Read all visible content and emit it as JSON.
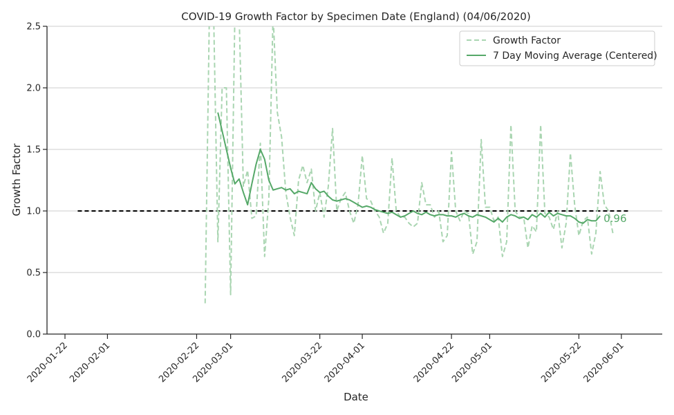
{
  "chart_data": {
    "type": "line",
    "title": "COVID-19 Growth Factor by Specimen Date (England) (04/06/2020)",
    "xlabel": "Date",
    "ylabel": "Growth Factor",
    "xlim": [
      "2020-01-22",
      "2020-06-02"
    ],
    "ylim": [
      0,
      2.5
    ],
    "x_ticks": [
      "2020-01-22",
      "2020-02-01",
      "2020-02-22",
      "2020-03-01",
      "2020-03-22",
      "2020-04-01",
      "2020-04-22",
      "2020-05-01",
      "2020-05-22",
      "2020-06-01"
    ],
    "y_ticks": [
      "0.0",
      "0.5",
      "1.0",
      "1.5",
      "2.0",
      "2.5"
    ],
    "grid": "horizontal",
    "legend_position": "top-right",
    "reference_line": {
      "y": 1.0,
      "x_from": "2020-01-25",
      "x_to": "2020-06-03",
      "style": "dashed",
      "color": "#000000"
    },
    "last_value_label": "0.96",
    "series": [
      {
        "name": "Growth Factor",
        "style": "dashed",
        "color": "#a9d5b1",
        "points": [
          [
            "2020-02-24",
            0.25
          ],
          [
            "2020-02-25",
            2.6
          ],
          [
            "2020-02-26",
            2.6
          ],
          [
            "2020-02-27",
            0.75
          ],
          [
            "2020-02-28",
            2.0
          ],
          [
            "2020-02-29",
            2.0
          ],
          [
            "2020-03-01",
            0.32
          ],
          [
            "2020-03-02",
            2.6
          ],
          [
            "2020-03-03",
            2.6
          ],
          [
            "2020-03-04",
            1.2
          ],
          [
            "2020-03-05",
            1.33
          ],
          [
            "2020-03-06",
            0.94
          ],
          [
            "2020-03-07",
            0.96
          ],
          [
            "2020-03-08",
            1.55
          ],
          [
            "2020-03-09",
            0.63
          ],
          [
            "2020-03-10",
            1.1
          ],
          [
            "2020-03-11",
            2.6
          ],
          [
            "2020-03-12",
            1.8
          ],
          [
            "2020-03-13",
            1.6
          ],
          [
            "2020-03-14",
            1.15
          ],
          [
            "2020-03-15",
            0.95
          ],
          [
            "2020-03-16",
            0.8
          ],
          [
            "2020-03-17",
            1.25
          ],
          [
            "2020-03-18",
            1.37
          ],
          [
            "2020-03-19",
            1.23
          ],
          [
            "2020-03-20",
            1.34
          ],
          [
            "2020-03-21",
            1.0
          ],
          [
            "2020-03-22",
            1.15
          ],
          [
            "2020-03-23",
            0.95
          ],
          [
            "2020-03-24",
            1.2
          ],
          [
            "2020-03-25",
            1.67
          ],
          [
            "2020-03-26",
            1.0
          ],
          [
            "2020-03-27",
            1.1
          ],
          [
            "2020-03-28",
            1.15
          ],
          [
            "2020-03-29",
            1.0
          ],
          [
            "2020-03-30",
            0.9
          ],
          [
            "2020-03-31",
            1.05
          ],
          [
            "2020-04-01",
            1.45
          ],
          [
            "2020-04-02",
            1.1
          ],
          [
            "2020-04-03",
            1.08
          ],
          [
            "2020-04-04",
            1.0
          ],
          [
            "2020-04-05",
            0.95
          ],
          [
            "2020-04-06",
            0.82
          ],
          [
            "2020-04-07",
            0.9
          ],
          [
            "2020-04-08",
            1.43
          ],
          [
            "2020-04-09",
            1.0
          ],
          [
            "2020-04-10",
            0.95
          ],
          [
            "2020-04-11",
            0.95
          ],
          [
            "2020-04-12",
            0.9
          ],
          [
            "2020-04-13",
            0.87
          ],
          [
            "2020-04-14",
            0.9
          ],
          [
            "2020-04-15",
            1.23
          ],
          [
            "2020-04-16",
            1.05
          ],
          [
            "2020-04-17",
            1.05
          ],
          [
            "2020-04-18",
            0.95
          ],
          [
            "2020-04-19",
            1.0
          ],
          [
            "2020-04-20",
            0.75
          ],
          [
            "2020-04-21",
            0.8
          ],
          [
            "2020-04-22",
            1.48
          ],
          [
            "2020-04-23",
            1.0
          ],
          [
            "2020-04-24",
            0.92
          ],
          [
            "2020-04-25",
            1.0
          ],
          [
            "2020-04-26",
            0.98
          ],
          [
            "2020-04-27",
            0.65
          ],
          [
            "2020-04-28",
            0.75
          ],
          [
            "2020-04-29",
            1.58
          ],
          [
            "2020-04-30",
            1.03
          ],
          [
            "2020-05-01",
            1.03
          ],
          [
            "2020-05-02",
            0.92
          ],
          [
            "2020-05-03",
            0.95
          ],
          [
            "2020-05-04",
            0.63
          ],
          [
            "2020-05-05",
            0.75
          ],
          [
            "2020-05-06",
            1.7
          ],
          [
            "2020-05-07",
            1.0
          ],
          [
            "2020-05-08",
            0.95
          ],
          [
            "2020-05-09",
            0.95
          ],
          [
            "2020-05-10",
            0.7
          ],
          [
            "2020-05-11",
            0.88
          ],
          [
            "2020-05-12",
            0.83
          ],
          [
            "2020-05-13",
            1.7
          ],
          [
            "2020-05-14",
            0.98
          ],
          [
            "2020-05-15",
            0.95
          ],
          [
            "2020-05-16",
            0.85
          ],
          [
            "2020-05-17",
            1.0
          ],
          [
            "2020-05-18",
            0.7
          ],
          [
            "2020-05-19",
            0.9
          ],
          [
            "2020-05-20",
            1.47
          ],
          [
            "2020-05-21",
            1.05
          ],
          [
            "2020-05-22",
            0.8
          ],
          [
            "2020-05-23",
            0.92
          ],
          [
            "2020-05-24",
            0.95
          ],
          [
            "2020-05-25",
            0.65
          ],
          [
            "2020-05-26",
            0.82
          ],
          [
            "2020-05-27",
            1.32
          ],
          [
            "2020-05-28",
            1.05
          ],
          [
            "2020-05-29",
            1.0
          ],
          [
            "2020-05-30",
            0.82
          ]
        ]
      },
      {
        "name": "7 Day Moving Average (Centered)",
        "style": "solid",
        "color": "#55a868",
        "points": [
          [
            "2020-02-27",
            1.8
          ],
          [
            "2020-02-28",
            1.65
          ],
          [
            "2020-02-29",
            1.5
          ],
          [
            "2020-03-01",
            1.35
          ],
          [
            "2020-03-02",
            1.22
          ],
          [
            "2020-03-03",
            1.26
          ],
          [
            "2020-03-04",
            1.15
          ],
          [
            "2020-03-05",
            1.05
          ],
          [
            "2020-03-06",
            1.22
          ],
          [
            "2020-03-07",
            1.38
          ],
          [
            "2020-03-08",
            1.5
          ],
          [
            "2020-03-09",
            1.42
          ],
          [
            "2020-03-10",
            1.25
          ],
          [
            "2020-03-11",
            1.17
          ],
          [
            "2020-03-12",
            1.18
          ],
          [
            "2020-03-13",
            1.19
          ],
          [
            "2020-03-14",
            1.17
          ],
          [
            "2020-03-15",
            1.18
          ],
          [
            "2020-03-16",
            1.14
          ],
          [
            "2020-03-17",
            1.16
          ],
          [
            "2020-03-18",
            1.15
          ],
          [
            "2020-03-19",
            1.14
          ],
          [
            "2020-03-20",
            1.23
          ],
          [
            "2020-03-21",
            1.18
          ],
          [
            "2020-03-22",
            1.15
          ],
          [
            "2020-03-23",
            1.16
          ],
          [
            "2020-03-24",
            1.12
          ],
          [
            "2020-03-25",
            1.09
          ],
          [
            "2020-03-26",
            1.08
          ],
          [
            "2020-03-27",
            1.09
          ],
          [
            "2020-03-28",
            1.1
          ],
          [
            "2020-03-29",
            1.09
          ],
          [
            "2020-03-30",
            1.07
          ],
          [
            "2020-03-31",
            1.05
          ],
          [
            "2020-04-01",
            1.03
          ],
          [
            "2020-04-02",
            1.04
          ],
          [
            "2020-04-03",
            1.03
          ],
          [
            "2020-04-04",
            1.01
          ],
          [
            "2020-04-05",
            1.0
          ],
          [
            "2020-04-06",
            0.99
          ],
          [
            "2020-04-07",
            0.98
          ],
          [
            "2020-04-08",
            0.99
          ],
          [
            "2020-04-09",
            0.97
          ],
          [
            "2020-04-10",
            0.95
          ],
          [
            "2020-04-11",
            0.96
          ],
          [
            "2020-04-12",
            0.98
          ],
          [
            "2020-04-13",
            1.0
          ],
          [
            "2020-04-14",
            0.98
          ],
          [
            "2020-04-15",
            0.97
          ],
          [
            "2020-04-16",
            0.99
          ],
          [
            "2020-04-17",
            0.97
          ],
          [
            "2020-04-18",
            0.96
          ],
          [
            "2020-04-19",
            0.97
          ],
          [
            "2020-04-20",
            0.97
          ],
          [
            "2020-04-21",
            0.96
          ],
          [
            "2020-04-22",
            0.96
          ],
          [
            "2020-04-23",
            0.95
          ],
          [
            "2020-04-24",
            0.97
          ],
          [
            "2020-04-25",
            0.98
          ],
          [
            "2020-04-26",
            0.96
          ],
          [
            "2020-04-27",
            0.95
          ],
          [
            "2020-04-28",
            0.97
          ],
          [
            "2020-04-29",
            0.96
          ],
          [
            "2020-04-30",
            0.95
          ],
          [
            "2020-05-01",
            0.93
          ],
          [
            "2020-05-02",
            0.91
          ],
          [
            "2020-05-03",
            0.94
          ],
          [
            "2020-05-04",
            0.91
          ],
          [
            "2020-05-05",
            0.95
          ],
          [
            "2020-05-06",
            0.97
          ],
          [
            "2020-05-07",
            0.96
          ],
          [
            "2020-05-08",
            0.94
          ],
          [
            "2020-05-09",
            0.95
          ],
          [
            "2020-05-10",
            0.93
          ],
          [
            "2020-05-11",
            0.97
          ],
          [
            "2020-05-12",
            0.95
          ],
          [
            "2020-05-13",
            0.98
          ],
          [
            "2020-05-14",
            0.95
          ],
          [
            "2020-05-15",
            0.99
          ],
          [
            "2020-05-16",
            0.96
          ],
          [
            "2020-05-17",
            0.98
          ],
          [
            "2020-05-18",
            0.97
          ],
          [
            "2020-05-19",
            0.96
          ],
          [
            "2020-05-20",
            0.96
          ],
          [
            "2020-05-21",
            0.94
          ],
          [
            "2020-05-22",
            0.91
          ],
          [
            "2020-05-23",
            0.9
          ],
          [
            "2020-05-24",
            0.93
          ],
          [
            "2020-05-25",
            0.92
          ],
          [
            "2020-05-26",
            0.92
          ],
          [
            "2020-05-27",
            0.96
          ]
        ]
      }
    ]
  }
}
